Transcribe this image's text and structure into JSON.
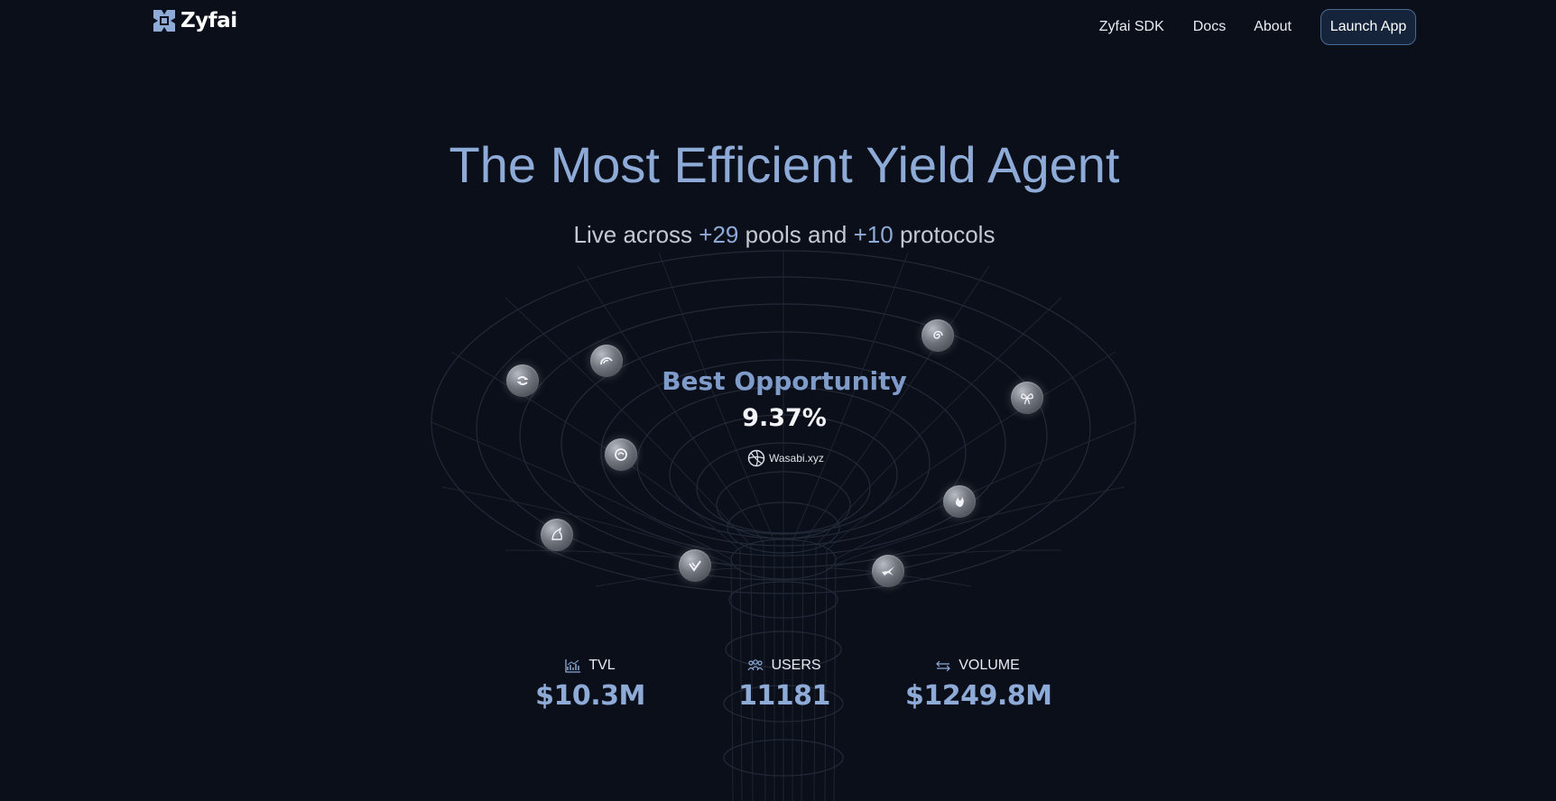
{
  "header": {
    "logo_text": "Zyfai",
    "nav": [
      {
        "label": "Zyfai SDK"
      },
      {
        "label": "Docs"
      },
      {
        "label": "About"
      }
    ],
    "launch_label": "Launch App"
  },
  "hero": {
    "title": "The Most Efficient Yield Agent",
    "subtitle_prefix": "Live across ",
    "pools_count": "+29",
    "subtitle_mid": " pools and ",
    "protocols_count": "+10",
    "subtitle_suffix": " protocols"
  },
  "opportunity": {
    "title": "Best Opportunity",
    "value": "9.37%",
    "protocol": "Wasabi.xyz"
  },
  "protocol_icons": [
    "swap-protocol-icon",
    "gauge-protocol-icon",
    "ring-protocol-icon",
    "unicorn-protocol-icon",
    "check-protocol-icon",
    "spiral-protocol-icon",
    "butterfly-protocol-icon",
    "flame-protocol-icon",
    "bird-protocol-icon"
  ],
  "stats": [
    {
      "label": "TVL",
      "value": "$10.3M",
      "icon": "chart-icon"
    },
    {
      "label": "USERS",
      "value": "11181",
      "icon": "users-icon"
    },
    {
      "label": "VOLUME",
      "value": "$1249.8M",
      "icon": "arrows-icon"
    }
  ],
  "colors": {
    "background": "#0b0f19",
    "accent": "#8eaad6",
    "button_bg": "#15243a",
    "button_border": "#4a6a93"
  }
}
